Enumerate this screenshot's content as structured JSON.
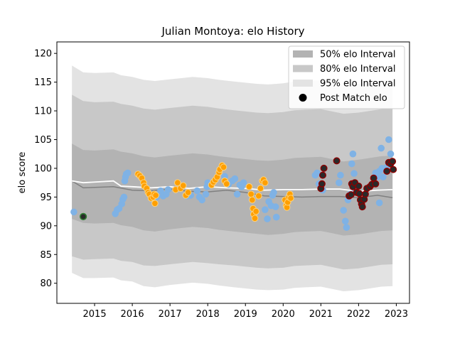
{
  "chart_data": {
    "type": "scatter",
    "title": "Julian Montoya: elo History",
    "xlabel": "",
    "ylabel": "elo score",
    "xlim": [
      2014.0,
      2023.35
    ],
    "ylim": [
      76.5,
      122.0
    ],
    "x_ticks": [
      2015,
      2016,
      2017,
      2018,
      2019,
      2020,
      2021,
      2022,
      2023
    ],
    "y_ticks": [
      80,
      85,
      90,
      95,
      100,
      105,
      110,
      115,
      120
    ],
    "legend": {
      "placement": "top-right",
      "entries": [
        {
          "label": "50% elo Interval",
          "color": "#b3b3b3"
        },
        {
          "label": "80% elo Interval",
          "color": "#c8c8c8"
        },
        {
          "label": "95% elo Interval",
          "color": "#e3e3e3"
        },
        {
          "label": "Post Match elo",
          "color": "#000000"
        }
      ]
    },
    "colors": {
      "band95": "#e3e3e3",
      "band80": "#c8c8c8",
      "band50": "#b3b3b3",
      "median_line": "#808080",
      "mean_line": "#ffffff",
      "blue": "#7fb2e5",
      "orange": "#ff9f00",
      "dark": "#2a2a2a",
      "dark_edge": "#8b0000",
      "green_edge": "#2e7d32"
    },
    "bands": {
      "x": [
        2014.4,
        2014.7,
        2015.0,
        2015.5,
        2015.7,
        2016.0,
        2016.3,
        2016.6,
        2017.0,
        2017.3,
        2017.6,
        2018.0,
        2018.3,
        2018.7,
        2019.0,
        2019.3,
        2019.6,
        2020.0,
        2020.3,
        2020.6,
        2021.0,
        2021.3,
        2021.6,
        2022.0,
        2022.3,
        2022.6,
        2022.9
      ],
      "p95_lo": [
        81.8,
        80.9,
        80.9,
        81.0,
        80.5,
        80.3,
        79.5,
        79.3,
        79.7,
        79.9,
        80.1,
        79.9,
        79.6,
        79.3,
        79.1,
        78.9,
        78.8,
        78.9,
        79.2,
        79.3,
        79.4,
        79.0,
        78.6,
        78.8,
        79.1,
        79.4,
        79.5
      ],
      "p80_lo": [
        84.7,
        84.1,
        84.2,
        84.3,
        83.9,
        83.7,
        83.1,
        83.0,
        83.3,
        83.5,
        83.7,
        83.5,
        83.3,
        83.1,
        82.9,
        82.7,
        82.6,
        82.7,
        83.0,
        83.1,
        83.2,
        82.8,
        82.4,
        82.6,
        82.9,
        83.2,
        83.3
      ],
      "p50_lo": [
        91.2,
        90.5,
        90.4,
        90.5,
        90.1,
        89.8,
        89.2,
        89.0,
        89.4,
        89.6,
        89.8,
        89.6,
        89.3,
        89.0,
        88.8,
        88.6,
        88.4,
        88.6,
        88.9,
        89.0,
        89.1,
        88.7,
        88.3,
        88.5,
        88.8,
        89.1,
        89.2
      ],
      "p50_hi": [
        104.3,
        103.2,
        103.1,
        103.3,
        102.9,
        102.6,
        102.1,
        101.9,
        102.2,
        102.4,
        102.6,
        102.4,
        102.1,
        101.8,
        101.6,
        101.4,
        101.3,
        101.5,
        101.8,
        101.9,
        102.0,
        101.6,
        101.2,
        101.5,
        101.8,
        102.1,
        102.2
      ],
      "p80_hi": [
        112.8,
        111.7,
        111.5,
        111.6,
        111.2,
        110.9,
        110.4,
        110.2,
        110.5,
        110.7,
        110.9,
        110.7,
        110.4,
        110.1,
        109.9,
        109.7,
        109.6,
        109.8,
        110.1,
        110.2,
        110.3,
        109.9,
        109.5,
        109.7,
        110.0,
        110.3,
        110.4
      ],
      "p95_hi": [
        117.9,
        116.7,
        116.6,
        116.7,
        116.2,
        115.9,
        115.4,
        115.2,
        115.5,
        115.7,
        115.9,
        115.7,
        115.4,
        115.1,
        114.9,
        114.7,
        114.6,
        114.8,
        115.1,
        115.2,
        115.3,
        114.9,
        114.5,
        114.7,
        115.0,
        115.3,
        115.4
      ]
    },
    "median_line": {
      "x": [
        2014.4,
        2014.7,
        2015.5,
        2016.0,
        2016.5,
        2017.0,
        2017.5,
        2018.0,
        2018.5,
        2019.0,
        2019.5,
        2020.0,
        2020.5,
        2021.0,
        2021.5,
        2022.0,
        2022.5,
        2022.9
      ],
      "y": [
        97.8,
        96.6,
        96.8,
        96.2,
        96.1,
        96.4,
        96.0,
        95.9,
        96.2,
        95.8,
        95.2,
        95.1,
        95.0,
        95.1,
        95.1,
        94.9,
        95.3,
        94.9
      ]
    },
    "mean_line": {
      "x": [
        2014.4,
        2014.7,
        2015.5,
        2015.7,
        2016.0,
        2016.5,
        2017.0,
        2017.5,
        2018.0,
        2018.5,
        2019.0,
        2019.5,
        2020.0,
        2020.5,
        2021.0,
        2021.5,
        2022.0,
        2022.5,
        2022.9
      ],
      "y": [
        97.8,
        97.5,
        97.8,
        96.9,
        96.8,
        96.6,
        96.8,
        96.5,
        96.8,
        96.6,
        96.5,
        96.2,
        96.3,
        96.3,
        96.4,
        96.4,
        96.0,
        96.2,
        96.3
      ]
    },
    "series": [
      {
        "color_key": "blue",
        "points": [
          [
            2014.45,
            92.4
          ],
          [
            2015.55,
            92.1
          ],
          [
            2015.6,
            92.8
          ],
          [
            2015.65,
            93.0
          ],
          [
            2015.72,
            93.8
          ],
          [
            2015.75,
            94.6
          ],
          [
            2015.78,
            95.0
          ],
          [
            2015.8,
            97.8
          ],
          [
            2015.82,
            98.5
          ],
          [
            2015.84,
            99.0
          ],
          [
            2015.88,
            99.2
          ],
          [
            2016.5,
            94.8
          ],
          [
            2016.55,
            95.4
          ],
          [
            2016.65,
            95.0
          ],
          [
            2016.75,
            96.1
          ],
          [
            2016.82,
            95.2
          ],
          [
            2016.9,
            95.5
          ],
          [
            2016.95,
            96.3
          ],
          [
            2017.45,
            95.2
          ],
          [
            2017.55,
            95.3
          ],
          [
            2017.72,
            96.1
          ],
          [
            2017.78,
            95.0
          ],
          [
            2017.85,
            94.5
          ],
          [
            2017.95,
            95.5
          ],
          [
            2017.98,
            96.8
          ],
          [
            2018.0,
            97.5
          ],
          [
            2018.45,
            98.6
          ],
          [
            2018.55,
            97.2
          ],
          [
            2018.65,
            97.8
          ],
          [
            2018.72,
            98.2
          ],
          [
            2018.78,
            95.5
          ],
          [
            2018.85,
            97.1
          ],
          [
            2018.9,
            96.8
          ],
          [
            2018.95,
            97.5
          ],
          [
            2019.52,
            92.8
          ],
          [
            2019.58,
            91.2
          ],
          [
            2019.62,
            94.2
          ],
          [
            2019.68,
            93.5
          ],
          [
            2019.72,
            95.3
          ],
          [
            2019.75,
            95.8
          ],
          [
            2019.8,
            93.3
          ],
          [
            2019.82,
            91.5
          ],
          [
            2020.85,
            98.8
          ],
          [
            2020.9,
            99.2
          ],
          [
            2020.95,
            97.3
          ],
          [
            2021.05,
            96.2
          ],
          [
            2021.48,
            97.5
          ],
          [
            2021.52,
            98.8
          ],
          [
            2021.6,
            92.7
          ],
          [
            2021.65,
            90.8
          ],
          [
            2021.68,
            89.7
          ],
          [
            2021.72,
            94.5
          ],
          [
            2021.78,
            95.5
          ],
          [
            2021.82,
            100.8
          ],
          [
            2021.85,
            102.5
          ],
          [
            2021.88,
            99.1
          ],
          [
            2021.9,
            96.5
          ],
          [
            2022.45,
            99.2
          ],
          [
            2022.5,
            98.5
          ],
          [
            2022.55,
            99.5
          ],
          [
            2022.6,
            103.5
          ],
          [
            2022.62,
            100.0
          ],
          [
            2022.65,
            98.5
          ],
          [
            2022.7,
            99.8
          ],
          [
            2022.75,
            100.2
          ],
          [
            2022.8,
            105.0
          ],
          [
            2022.85,
            102.5
          ],
          [
            2022.88,
            101.2
          ],
          [
            2022.55,
            94.0
          ]
        ]
      },
      {
        "color_key": "orange",
        "points": [
          [
            2016.15,
            99.0
          ],
          [
            2016.2,
            98.7
          ],
          [
            2016.25,
            98.3
          ],
          [
            2016.3,
            97.5
          ],
          [
            2016.32,
            96.9
          ],
          [
            2016.38,
            96.5
          ],
          [
            2016.42,
            95.8
          ],
          [
            2016.45,
            95.5
          ],
          [
            2016.5,
            94.8
          ],
          [
            2016.55,
            95.0
          ],
          [
            2016.58,
            95.5
          ],
          [
            2016.6,
            93.9
          ],
          [
            2016.62,
            95.3
          ],
          [
            2017.15,
            96.3
          ],
          [
            2017.2,
            97.5
          ],
          [
            2017.28,
            96.5
          ],
          [
            2017.35,
            97.0
          ],
          [
            2017.42,
            95.3
          ],
          [
            2017.48,
            95.8
          ],
          [
            2018.1,
            97.1
          ],
          [
            2018.15,
            97.6
          ],
          [
            2018.2,
            98.0
          ],
          [
            2018.25,
            98.5
          ],
          [
            2018.3,
            99.3
          ],
          [
            2018.32,
            99.8
          ],
          [
            2018.38,
            100.5
          ],
          [
            2018.42,
            100.2
          ],
          [
            2018.45,
            97.8
          ],
          [
            2018.5,
            97.3
          ],
          [
            2019.1,
            96.8
          ],
          [
            2019.15,
            95.5
          ],
          [
            2019.18,
            94.5
          ],
          [
            2019.2,
            93.0
          ],
          [
            2019.22,
            92.0
          ],
          [
            2019.25,
            91.3
          ],
          [
            2019.28,
            92.5
          ],
          [
            2019.35,
            95.2
          ],
          [
            2019.4,
            96.5
          ],
          [
            2019.45,
            97.8
          ],
          [
            2019.48,
            98.0
          ],
          [
            2019.52,
            97.5
          ],
          [
            2020.05,
            94.5
          ],
          [
            2020.08,
            93.5
          ],
          [
            2020.1,
            93.2
          ],
          [
            2020.12,
            94.1
          ],
          [
            2020.15,
            95.0
          ],
          [
            2020.18,
            95.5
          ],
          [
            2020.2,
            94.8
          ]
        ]
      },
      {
        "color_key": "dark",
        "points": [
          [
            2021.0,
            96.5
          ],
          [
            2021.03,
            97.3
          ],
          [
            2021.05,
            98.8
          ],
          [
            2021.08,
            100.0
          ],
          [
            2021.42,
            101.3
          ],
          [
            2021.75,
            95.2
          ],
          [
            2021.8,
            95.4
          ],
          [
            2021.82,
            97.3
          ],
          [
            2021.85,
            96.8
          ],
          [
            2021.9,
            97.5
          ],
          [
            2021.95,
            95.8
          ],
          [
            2022.0,
            96.9
          ],
          [
            2022.02,
            95.6
          ],
          [
            2022.05,
            94.5
          ],
          [
            2022.08,
            93.8
          ],
          [
            2022.1,
            93.3
          ],
          [
            2022.15,
            94.6
          ],
          [
            2022.18,
            95.5
          ],
          [
            2022.22,
            96.5
          ],
          [
            2022.3,
            96.8
          ],
          [
            2022.35,
            97.2
          ],
          [
            2022.4,
            98.3
          ],
          [
            2022.45,
            97.3
          ],
          [
            2022.75,
            99.5
          ],
          [
            2022.8,
            101.0
          ],
          [
            2022.85,
            100.8
          ],
          [
            2022.9,
            101.2
          ],
          [
            2022.92,
            99.8
          ]
        ]
      },
      {
        "color_key": "green",
        "points": [
          [
            2014.7,
            91.6
          ]
        ]
      }
    ]
  }
}
